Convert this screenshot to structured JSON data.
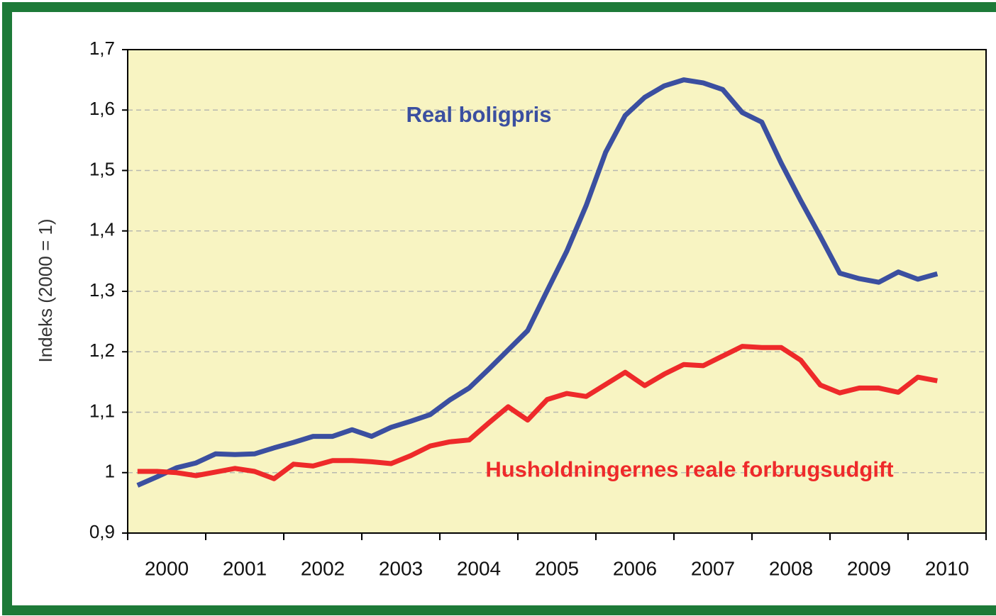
{
  "chart_data": {
    "type": "line",
    "y_label": "Indeks (2000 = 1)",
    "annotations": [
      {
        "text": "Real boligpris",
        "color": "#3b4fa0",
        "x": 2004.5,
        "y": 1.59
      },
      {
        "text": "Husholdningernes reale forbrugsudgift",
        "color": "#ee2a2a",
        "x": 2007.2,
        "y": 1.003
      }
    ],
    "xlim": [
      2000,
      2011
    ],
    "xtick_marks": [
      2000,
      2001,
      2002,
      2003,
      2004,
      2005,
      2006,
      2007,
      2008,
      2009,
      2010,
      2011
    ],
    "xticks": [
      {
        "value": 2000.5,
        "label": "2000"
      },
      {
        "value": 2001.5,
        "label": "2001"
      },
      {
        "value": 2002.5,
        "label": "2002"
      },
      {
        "value": 2003.5,
        "label": "2003"
      },
      {
        "value": 2004.5,
        "label": "2004"
      },
      {
        "value": 2005.5,
        "label": "2005"
      },
      {
        "value": 2006.5,
        "label": "2006"
      },
      {
        "value": 2007.5,
        "label": "2007"
      },
      {
        "value": 2008.5,
        "label": "2008"
      },
      {
        "value": 2009.5,
        "label": "2009"
      },
      {
        "value": 2010.5,
        "label": "2010"
      }
    ],
    "ylim": [
      0.9,
      1.7
    ],
    "yticks": [
      {
        "value": 0.9,
        "label": "0,9"
      },
      1,
      {
        "value": 1.1,
        "label": "1,1"
      },
      {
        "value": 1.2,
        "label": "1,2"
      },
      {
        "value": 1.3,
        "label": "1,3"
      },
      {
        "value": 1.4,
        "label": "1,4"
      },
      {
        "value": 1.5,
        "label": "1,5"
      },
      {
        "value": 1.6,
        "label": "1,6"
      },
      {
        "value": 1.7,
        "label": "1,7"
      }
    ],
    "grid": true,
    "x": [
      2000.125,
      2000.375,
      2000.625,
      2000.875,
      2001.125,
      2001.375,
      2001.625,
      2001.875,
      2002.125,
      2002.375,
      2002.625,
      2002.875,
      2003.125,
      2003.375,
      2003.625,
      2003.875,
      2004.125,
      2004.375,
      2004.625,
      2004.875,
      2005.125,
      2005.375,
      2005.625,
      2005.875,
      2006.125,
      2006.375,
      2006.625,
      2006.875,
      2007.125,
      2007.375,
      2007.625,
      2007.875,
      2008.125,
      2008.375,
      2008.625,
      2008.875,
      2009.125,
      2009.375,
      2009.625,
      2009.875,
      2010.125,
      2010.375
    ],
    "series": [
      {
        "color": "#3b4fa0",
        "values": [
          0.979,
          0.993,
          1.008,
          1.016,
          1.031,
          1.03,
          1.031,
          1.041,
          1.05,
          1.06,
          1.06,
          1.071,
          1.06,
          1.075,
          1.085,
          1.096,
          1.12,
          1.14,
          1.171,
          1.203,
          1.235,
          1.301,
          1.366,
          1.442,
          1.53,
          1.591,
          1.621,
          1.64,
          1.65,
          1.645,
          1.634,
          1.596,
          1.58,
          1.512,
          1.45,
          1.391,
          1.33,
          1.321,
          1.315,
          1.332,
          1.32,
          1.329
        ]
      },
      {
        "color": "#ee2a2a",
        "values": [
          1.002,
          1.002,
          1.0,
          0.995,
          1.001,
          1.007,
          1.002,
          0.99,
          1.014,
          1.011,
          1.02,
          1.02,
          1.018,
          1.015,
          1.028,
          1.044,
          1.051,
          1.054,
          1.082,
          1.109,
          1.087,
          1.121,
          1.131,
          1.126,
          1.146,
          1.166,
          1.144,
          1.163,
          1.179,
          1.177,
          1.193,
          1.209,
          1.207,
          1.207,
          1.186,
          1.145,
          1.132,
          1.14,
          1.14,
          1.133,
          1.158,
          1.152
        ]
      }
    ]
  }
}
